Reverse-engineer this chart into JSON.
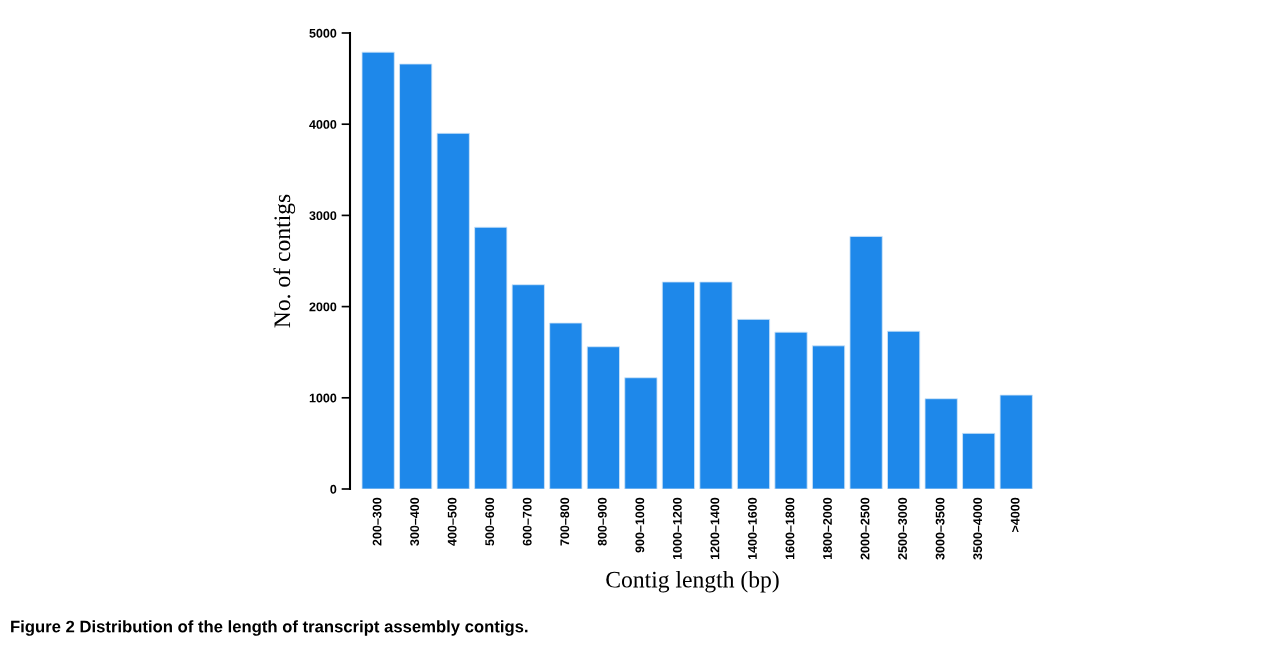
{
  "chart_data": {
    "type": "bar",
    "categories": [
      "200–300",
      "300–400",
      "400–500",
      "500–600",
      "600–700",
      "700–800",
      "800–900",
      "900–1000",
      "1000–1200",
      "1200–1400",
      "1400–1600",
      "1600–1800",
      "1800–2000",
      "2000–2500",
      "2500–3000",
      "3000–3500",
      "3500–4000",
      ">4000"
    ],
    "values": [
      4790,
      4660,
      3900,
      2870,
      2240,
      1820,
      1560,
      1220,
      2270,
      2270,
      1860,
      1720,
      1570,
      2770,
      1730,
      990,
      610,
      1030
    ],
    "color": "#1e88ea",
    "xlabel": "Contig length (bp)",
    "ylabel": "No. of contigs",
    "ylim": [
      0,
      5000
    ],
    "yticks": [
      0,
      1000,
      2000,
      3000,
      4000,
      5000
    ],
    "grid": false,
    "legend": false,
    "annotations": [
      "Figure 2 Distribution of the length of transcript assembly contigs."
    ]
  }
}
